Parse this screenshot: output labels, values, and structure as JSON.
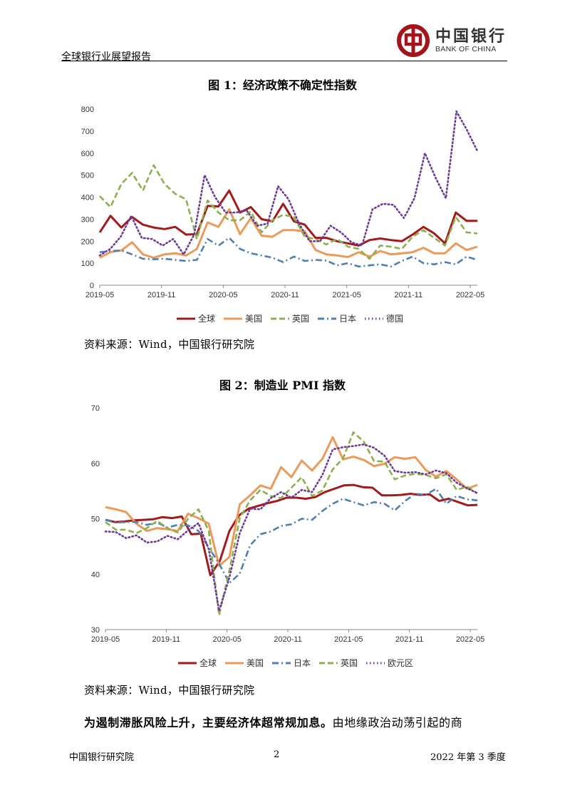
{
  "header": {
    "title": "全球银行业展望报告",
    "logo_cn": "中国银行",
    "logo_en": "BANK OF CHINA"
  },
  "figure1": {
    "title": "图 1：经济政策不确定性指数",
    "source": "资料来源：Wind，中国银行研究院"
  },
  "figure2": {
    "title": "图 2：制造业 PMI 指数",
    "source": "资料来源：Wind，中国银行研究院"
  },
  "body": {
    "bold_text": "为遏制滞胀风险上升，主要经济体超常规加息。",
    "plain_text": "由地缘政治动荡引起的商"
  },
  "footer": {
    "left": "中国银行研究院",
    "page": "2",
    "right": "2022 年第 3 季度"
  },
  "chart_data": [
    {
      "type": "line",
      "title": "经济政策不确定性指数",
      "x_labels": [
        "2019-05",
        "2019-11",
        "2020-05",
        "2020-11",
        "2021-05",
        "2021-11",
        "2022-05"
      ],
      "ylim": [
        0,
        800
      ],
      "y_ticks": [
        0,
        100,
        200,
        300,
        400,
        500,
        600,
        700,
        800
      ],
      "series": [
        {
          "name": "全球",
          "color": "#a31a1a",
          "dash": "solid",
          "values": [
            240,
            315,
            262,
            310,
            275,
            262,
            255,
            265,
            230,
            232,
            360,
            358,
            430,
            330,
            355,
            300,
            290,
            370,
            290,
            275,
            215,
            215,
            200,
            190,
            180,
            205,
            212,
            205,
            200,
            230,
            265,
            235,
            190,
            330,
            292,
            292
          ]
        },
        {
          "name": "美国",
          "color": "#eb9a5a",
          "dash": "solid",
          "values": [
            125,
            150,
            158,
            195,
            140,
            125,
            140,
            145,
            135,
            165,
            285,
            265,
            345,
            232,
            305,
            225,
            220,
            250,
            250,
            245,
            160,
            140,
            135,
            128,
            150,
            130,
            155,
            140,
            145,
            150,
            170,
            145,
            145,
            190,
            160,
            175
          ]
        },
        {
          "name": "英国",
          "color": "#8cb04d",
          "dash": "dashed",
          "values": [
            405,
            355,
            460,
            510,
            430,
            545,
            460,
            415,
            390,
            210,
            385,
            330,
            295,
            295,
            335,
            240,
            295,
            320,
            310,
            220,
            210,
            185,
            210,
            175,
            165,
            120,
            180,
            175,
            165,
            220,
            250,
            215,
            180,
            310,
            240,
            235
          ]
        },
        {
          "name": "日本",
          "color": "#4f7fb0",
          "dash": "dashdot",
          "values": [
            150,
            155,
            158,
            140,
            120,
            118,
            120,
            115,
            110,
            115,
            210,
            180,
            215,
            165,
            145,
            135,
            125,
            105,
            130,
            110,
            115,
            112,
            90,
            100,
            85,
            90,
            95,
            85,
            110,
            130,
            100,
            95,
            105,
            95,
            130,
            115
          ]
        },
        {
          "name": "德国",
          "color": "#6b3a96",
          "dash": "dotted",
          "values": [
            135,
            165,
            220,
            315,
            215,
            210,
            180,
            210,
            140,
            230,
            500,
            400,
            330,
            330,
            340,
            270,
            280,
            450,
            390,
            280,
            200,
            200,
            270,
            240,
            195,
            180,
            345,
            370,
            365,
            305,
            395,
            600,
            490,
            395,
            790,
            705,
            610
          ]
        }
      ]
    },
    {
      "type": "line",
      "title": "制造业 PMI 指数",
      "x_labels": [
        "2019-05",
        "2019-11",
        "2020-05",
        "2020-11",
        "2021-05",
        "2021-11",
        "2022-05"
      ],
      "ylim": [
        30,
        70
      ],
      "y_ticks": [
        30,
        40,
        50,
        60,
        70
      ],
      "series": [
        {
          "name": "全球",
          "color": "#a31a1a",
          "dash": "solid",
          "values": [
            49.8,
            49.4,
            49.5,
            49.7,
            49.8,
            49.9,
            50.3,
            50.1,
            50.4,
            47.2,
            47.3,
            39.8,
            42.4,
            47.8,
            50.6,
            51.8,
            52.3,
            52.8,
            53.2,
            53.8,
            53.8,
            53.6,
            53.9,
            54.8,
            55.4,
            56.0,
            56.1,
            55.7,
            55.6,
            54.2,
            54.2,
            54.3,
            54.5,
            54.3,
            54.4,
            53.2,
            53.6,
            53.0,
            52.4,
            52.5
          ]
        },
        {
          "name": "美国",
          "color": "#eb9a5a",
          "dash": "solid",
          "values": [
            52.1,
            51.7,
            51.2,
            49.1,
            47.8,
            48.3,
            48.1,
            47.8,
            50.9,
            50.1,
            49.1,
            41.5,
            43.1,
            52.6,
            54.2,
            56.0,
            55.4,
            59.3,
            57.5,
            60.5,
            58.7,
            60.8,
            64.7,
            60.7,
            61.2,
            60.6,
            59.5,
            59.9,
            61.1,
            60.8,
            61.1,
            58.8,
            57.6,
            58.6,
            57.1,
            55.4,
            56.1
          ]
        },
        {
          "name": "日本",
          "color": "#4f7fb0",
          "dash": "dashdot",
          "values": [
            49.8,
            49.3,
            49.4,
            49.4,
            48.9,
            49.3,
            48.4,
            48.9,
            48.8,
            47.8,
            44.8,
            41.9,
            38.4,
            40.1,
            45.2,
            47.2,
            47.7,
            48.7,
            49.0,
            50.0,
            49.8,
            51.4,
            52.7,
            53.6,
            53.0,
            52.4,
            53.0,
            52.7,
            51.5,
            53.2,
            54.5,
            54.3,
            55.4,
            52.7,
            54.1,
            53.5,
            53.3
          ]
        },
        {
          "name": "英国",
          "color": "#8cb04d",
          "dash": "dashed",
          "values": [
            49.4,
            48.0,
            48.0,
            47.4,
            48.3,
            49.6,
            48.3,
            47.5,
            50.0,
            51.7,
            47.8,
            32.6,
            40.7,
            50.1,
            53.3,
            55.2,
            54.1,
            53.7,
            55.6,
            57.5,
            54.1,
            55.1,
            58.9,
            60.9,
            65.6,
            63.9,
            60.4,
            60.3,
            57.1,
            57.8,
            58.1,
            57.9,
            57.3,
            58.0,
            55.2,
            55.8,
            54.6
          ]
        },
        {
          "name": "欧元区",
          "color": "#6b3a96",
          "dash": "dotted",
          "values": [
            47.7,
            47.6,
            46.5,
            47.0,
            45.7,
            45.9,
            46.9,
            46.3,
            47.9,
            49.2,
            44.5,
            33.4,
            39.4,
            47.4,
            51.8,
            51.7,
            53.7,
            54.8,
            53.8,
            55.2,
            54.8,
            57.9,
            62.5,
            62.9,
            63.1,
            63.4,
            62.8,
            61.4,
            58.6,
            58.3,
            58.4,
            58.0,
            58.7,
            58.2,
            56.5,
            55.5,
            54.6
          ]
        }
      ]
    }
  ]
}
